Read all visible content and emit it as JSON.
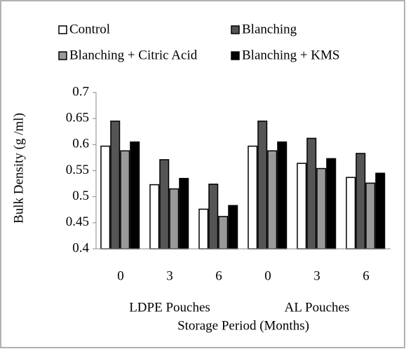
{
  "chart_data": {
    "type": "bar",
    "y_label": "Bulk Density (g /ml)",
    "x_label": "Storage Period (Months)",
    "categories": [
      "0",
      "3",
      "6",
      "0",
      "3",
      "6"
    ],
    "groups": [
      "LDPE Pouches",
      "AL Pouches"
    ],
    "series": [
      {
        "name": "Control",
        "color": "#ffffff",
        "values": [
          0.597,
          0.523,
          0.476,
          0.597,
          0.564,
          0.537
        ]
      },
      {
        "name": "Blanching",
        "color": "#555555",
        "values": [
          0.645,
          0.571,
          0.524,
          0.645,
          0.612,
          0.583
        ]
      },
      {
        "name": "Blanching + Citric Acid",
        "color": "#999999",
        "values": [
          0.588,
          0.515,
          0.462,
          0.588,
          0.554,
          0.526
        ]
      },
      {
        "name": "Blanching + KMS",
        "color": "#000000",
        "values": [
          0.605,
          0.535,
          0.483,
          0.605,
          0.573,
          0.545
        ]
      }
    ],
    "ylim": [
      0.4,
      0.7
    ],
    "yticks": [
      0.4,
      0.45,
      0.5,
      0.55,
      0.6,
      0.65,
      0.7
    ],
    "grid": false,
    "legend": "top"
  }
}
